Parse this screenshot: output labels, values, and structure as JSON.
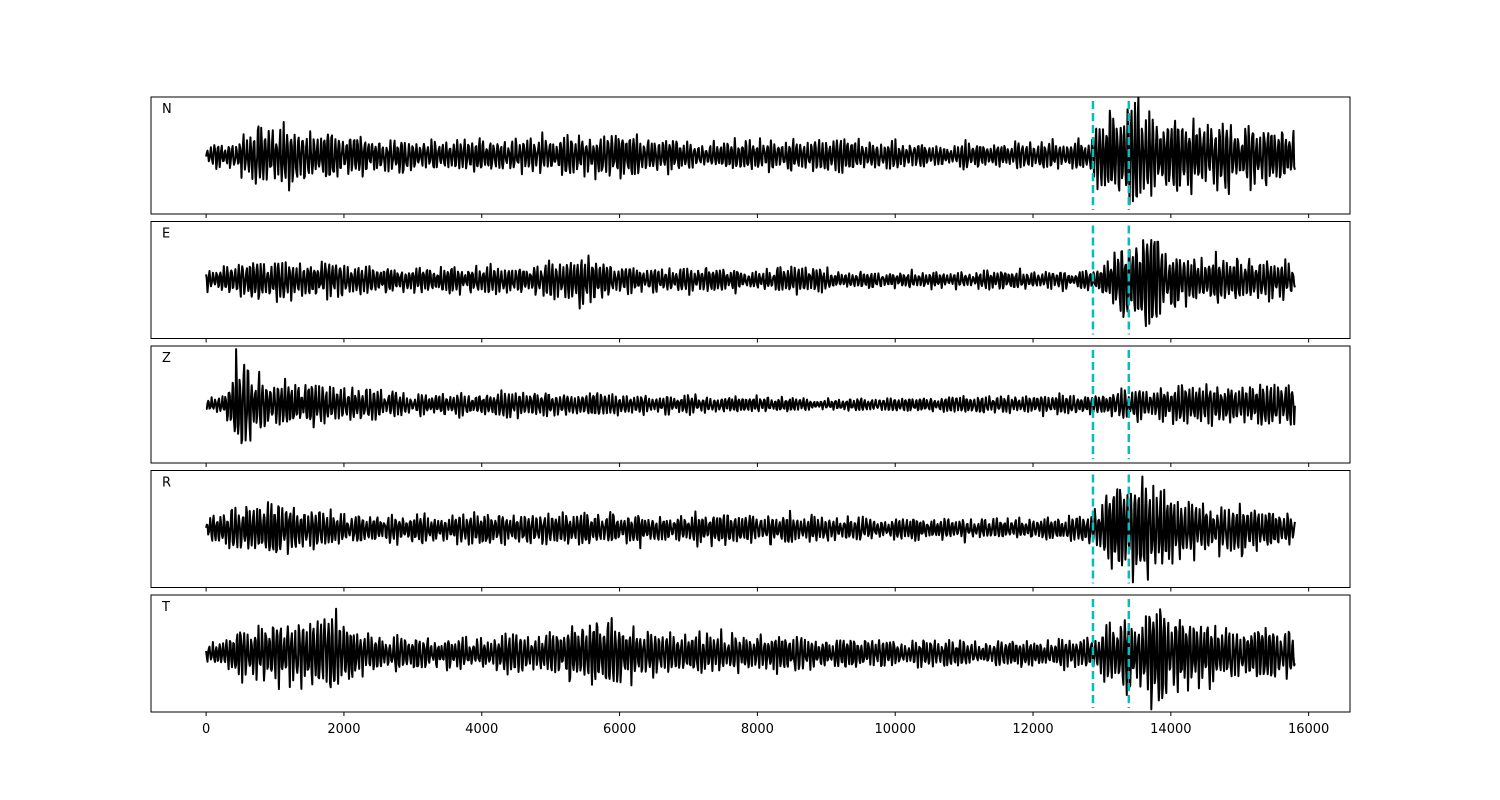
{
  "chart_data": {
    "type": "line",
    "title": "",
    "xlabel": "",
    "ylabel": "",
    "xlim": [
      -800,
      16600
    ],
    "x_ticks": [
      0,
      2000,
      4000,
      6000,
      8000,
      10000,
      12000,
      14000,
      16000
    ],
    "x_tick_labels": [
      "0",
      "2000",
      "4000",
      "6000",
      "8000",
      "10000",
      "12000",
      "14000",
      "16000"
    ],
    "sample_range": [
      0,
      15800
    ],
    "grid": false,
    "pick_color": "#00bfbf",
    "trace_color": "#000000",
    "picks": [
      12870,
      13390
    ],
    "panels": [
      {
        "label": "N",
        "ylim": [
          -1.3,
          1.3
        ],
        "envelope": [
          [
            0,
            0.2
          ],
          [
            450,
            0.35
          ],
          [
            800,
            0.55
          ],
          [
            1700,
            0.55
          ],
          [
            2500,
            0.3
          ],
          [
            4000,
            0.35
          ],
          [
            6000,
            0.45
          ],
          [
            7300,
            0.25
          ],
          [
            8500,
            0.35
          ],
          [
            10500,
            0.25
          ],
          [
            12800,
            0.3
          ],
          [
            13000,
            0.9
          ],
          [
            13400,
            1.15
          ],
          [
            13800,
            0.75
          ],
          [
            15000,
            0.65
          ],
          [
            15800,
            0.45
          ]
        ]
      },
      {
        "label": "E",
        "ylim": [
          -1.3,
          1.3
        ],
        "envelope": [
          [
            0,
            0.25
          ],
          [
            500,
            0.35
          ],
          [
            900,
            0.45
          ],
          [
            1800,
            0.35
          ],
          [
            3000,
            0.25
          ],
          [
            5200,
            0.35
          ],
          [
            5500,
            0.55
          ],
          [
            6000,
            0.25
          ],
          [
            8500,
            0.25
          ],
          [
            10500,
            0.15
          ],
          [
            12800,
            0.2
          ],
          [
            13000,
            0.5
          ],
          [
            13400,
            0.85
          ],
          [
            13700,
            1.05
          ],
          [
            14200,
            0.55
          ],
          [
            15800,
            0.3
          ]
        ]
      },
      {
        "label": "Z",
        "ylim": [
          -1.3,
          1.3
        ],
        "envelope": [
          [
            0,
            0.15
          ],
          [
            300,
            0.3
          ],
          [
            450,
            1.05
          ],
          [
            700,
            0.65
          ],
          [
            1000,
            0.45
          ],
          [
            2000,
            0.35
          ],
          [
            3000,
            0.2
          ],
          [
            5000,
            0.25
          ],
          [
            6500,
            0.2
          ],
          [
            9000,
            0.12
          ],
          [
            12800,
            0.2
          ],
          [
            13400,
            0.3
          ],
          [
            13800,
            0.35
          ],
          [
            15000,
            0.4
          ],
          [
            15800,
            0.45
          ]
        ]
      },
      {
        "label": "R",
        "ylim": [
          -1.3,
          1.3
        ],
        "envelope": [
          [
            0,
            0.25
          ],
          [
            500,
            0.45
          ],
          [
            900,
            0.55
          ],
          [
            2000,
            0.3
          ],
          [
            5500,
            0.3
          ],
          [
            8500,
            0.3
          ],
          [
            10500,
            0.2
          ],
          [
            12800,
            0.25
          ],
          [
            13000,
            0.6
          ],
          [
            13400,
            1.1
          ],
          [
            13700,
            0.95
          ],
          [
            14500,
            0.5
          ],
          [
            15000,
            0.55
          ],
          [
            15800,
            0.3
          ]
        ]
      },
      {
        "label": "T",
        "ylim": [
          -1.3,
          1.3
        ],
        "envelope": [
          [
            0,
            0.2
          ],
          [
            500,
            0.45
          ],
          [
            1000,
            0.6
          ],
          [
            1700,
            0.9
          ],
          [
            2500,
            0.35
          ],
          [
            4000,
            0.3
          ],
          [
            5200,
            0.45
          ],
          [
            5500,
            0.75
          ],
          [
            6500,
            0.45
          ],
          [
            8500,
            0.35
          ],
          [
            11000,
            0.25
          ],
          [
            12800,
            0.3
          ],
          [
            13300,
            0.75
          ],
          [
            13800,
            1.2
          ],
          [
            14300,
            0.6
          ],
          [
            15800,
            0.45
          ]
        ]
      }
    ]
  }
}
